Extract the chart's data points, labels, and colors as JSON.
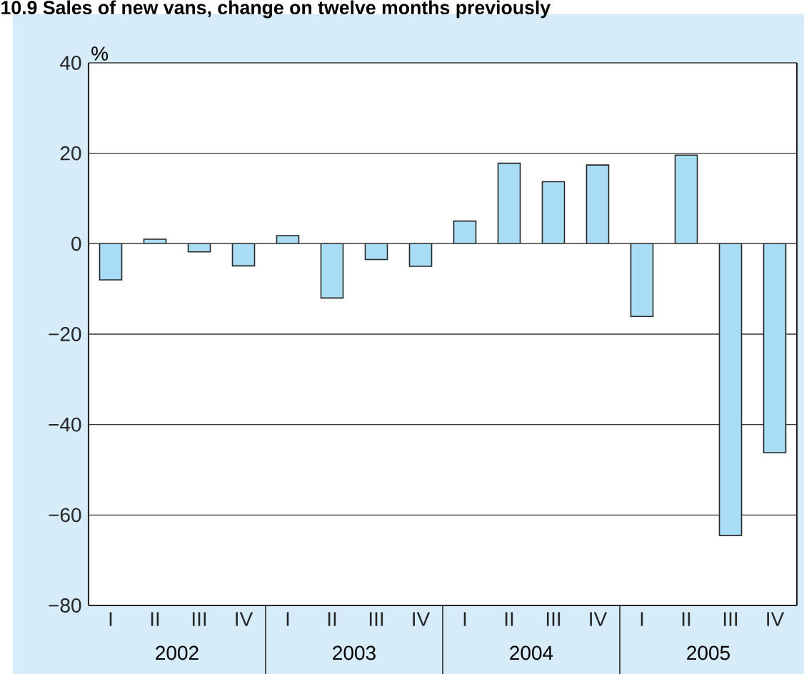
{
  "chart_data": {
    "type": "bar",
    "title": "10.9 Sales of new vans, change on twelve months previously",
    "ylabel": "%",
    "categories": [
      "I",
      "II",
      "III",
      "IV",
      "I",
      "II",
      "III",
      "IV",
      "I",
      "II",
      "III",
      "IV",
      "I",
      "II",
      "III",
      "IV"
    ],
    "annotations": [
      "2002",
      "2003",
      "2004",
      "2005"
    ],
    "values": [
      -8,
      1,
      -1.8,
      -4.9,
      1.8,
      -12,
      -3.5,
      -5,
      5,
      17.8,
      13.7,
      17.4,
      -16.1,
      19.6,
      -64.5,
      -46.2
    ],
    "color": "#a8ddf5",
    "ylim": [
      -80,
      40
    ],
    "yticks": [
      {
        "value": -80,
        "label": "−80"
      },
      {
        "value": -60,
        "label": "−60"
      },
      {
        "value": -40,
        "label": "−40"
      },
      {
        "value": -20,
        "label": "−20"
      },
      0,
      20,
      40
    ],
    "grid": "y"
  }
}
